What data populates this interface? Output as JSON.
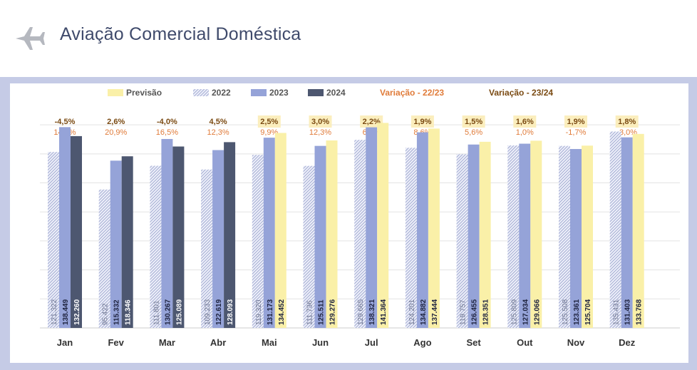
{
  "page": {
    "title": "Aviação Comercial Doméstica"
  },
  "icons": {
    "plane": "airplane-icon"
  },
  "colors": {
    "previsao": "#faf0a8",
    "y2022": "#9aa4cf",
    "y2023": "#95a3d8",
    "y2024": "#4d5770",
    "var_22_23": "#e07b39",
    "var_23_24": "#7a4a12",
    "highlight": "#fbeebd"
  },
  "legend": {
    "previsao": "Previsão",
    "y2022": "2022",
    "y2023": "2023",
    "y2024": "2024",
    "var_22_23": "Variação - 22/23",
    "var_23_24": "Variação - 23/24"
  },
  "chart_data": {
    "type": "bar",
    "categories": [
      "Jan",
      "Fev",
      "Mar",
      "Abr",
      "Mai",
      "Jun",
      "Jul",
      "Ago",
      "Set",
      "Out",
      "Nov",
      "Dez"
    ],
    "series": [
      {
        "name": "2022",
        "values": [
          121322,
          95422,
          111801,
          109233,
          119320,
          111736,
          129665,
          124201,
          119757,
          125809,
          125508,
          135431
        ],
        "labels": [
          "121.322",
          "95.422",
          "111.801",
          "109.233",
          "119.320",
          "111.736",
          "129.665",
          "124.201",
          "119.757",
          "125.809",
          "125.508",
          "135.431"
        ]
      },
      {
        "name": "2023",
        "values": [
          138449,
          115332,
          130267,
          122619,
          131173,
          125511,
          138321,
          134882,
          126455,
          127034,
          123361,
          131403
        ],
        "labels": [
          "138.449",
          "115.332",
          "130.267",
          "122.619",
          "131.173",
          "125.511",
          "138.321",
          "134.882",
          "126.455",
          "127.034",
          "123.361",
          "131.403"
        ]
      },
      {
        "name": "2024",
        "values": [
          132260,
          118346,
          125089,
          128093,
          134452,
          129276,
          141364,
          137444,
          128351,
          129066,
          125704,
          133768
        ],
        "labels": [
          "132.260",
          "118.346",
          "125.089",
          "128.093",
          "134.452",
          "129.276",
          "141.364",
          "137.444",
          "128.351",
          "129.066",
          "125.704",
          "133.768"
        ],
        "forecast": [
          false,
          false,
          false,
          false,
          true,
          true,
          true,
          true,
          true,
          true,
          true,
          true
        ]
      }
    ],
    "variation_23_24": [
      "-4,5%",
      "2,6%",
      "-4,0%",
      "4,5%",
      "2,5%",
      "3,0%",
      "2,2%",
      "1,9%",
      "1,5%",
      "1,6%",
      "1,9%",
      "1,8%"
    ],
    "variation_22_23": [
      "14,1%",
      "20,9%",
      "16,5%",
      "12,3%",
      "9,9%",
      "12,3%",
      "6,7%",
      "8,6%",
      "5,6%",
      "1,0%",
      "-1,7%",
      "-3,0%"
    ],
    "variation_highlight": [
      false,
      false,
      false,
      false,
      true,
      true,
      true,
      true,
      true,
      true,
      true,
      true
    ],
    "ylim": [
      0,
      145000
    ],
    "grid": true
  }
}
